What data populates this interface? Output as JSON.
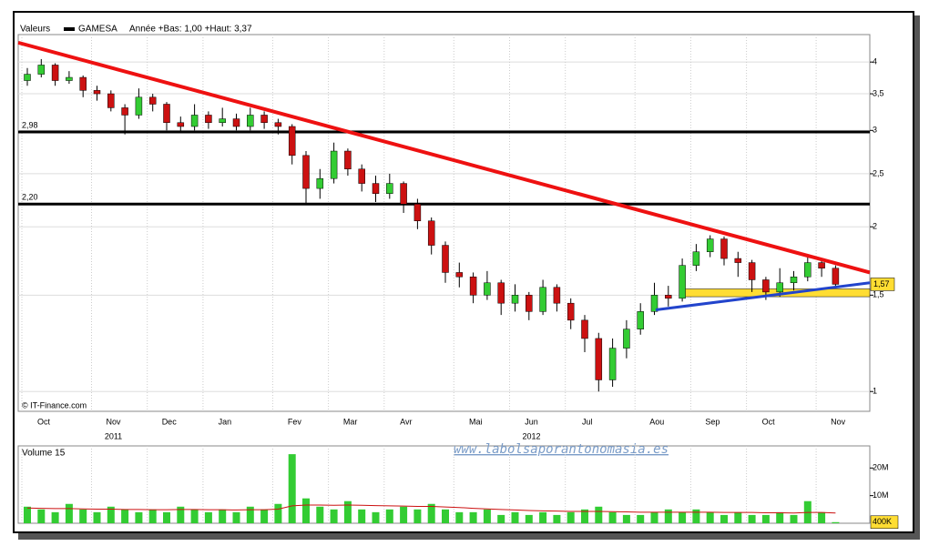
{
  "chart_data": {
    "type": "candlestick",
    "legend_label": "Valeurs",
    "series_name": "GAMESA",
    "range_text": "Année +Bas: 1,00 +Haut: 3,37",
    "categories": [
      "Oct",
      null,
      null,
      null,
      null,
      "Nov",
      null,
      null,
      null,
      "Dec",
      null,
      null,
      null,
      "Jan",
      null,
      null,
      null,
      null,
      "Fev",
      null,
      null,
      null,
      "Mar",
      null,
      null,
      null,
      "Avr",
      null,
      null,
      null,
      null,
      "Mai",
      null,
      null,
      null,
      "Jun",
      null,
      null,
      null,
      "Jul",
      null,
      null,
      null,
      null,
      "Aou",
      null,
      null,
      null,
      "Sep",
      null,
      null,
      null,
      "Oct",
      null,
      null,
      null,
      null,
      "Nov",
      null
    ],
    "years": [
      "2011",
      "2012"
    ],
    "open": [
      3.7,
      3.8,
      3.95,
      3.7,
      3.75,
      3.55,
      3.5,
      3.3,
      3.2,
      3.45,
      3.35,
      3.1,
      3.05,
      3.2,
      3.1,
      3.15,
      3.05,
      3.2,
      3.1,
      3.05,
      2.7,
      2.35,
      2.45,
      2.75,
      2.55,
      2.4,
      2.3,
      2.4,
      2.2,
      2.05,
      1.85,
      1.65,
      1.62,
      1.5,
      1.58,
      1.45,
      1.5,
      1.4,
      1.55,
      1.45,
      1.35,
      1.25,
      1.05,
      1.2,
      1.3,
      1.4,
      1.5,
      1.48,
      1.7,
      1.8,
      1.9,
      1.75,
      1.72,
      1.6,
      1.52,
      1.58,
      1.62,
      1.72,
      1.68
    ],
    "high": [
      3.9,
      4.05,
      3.98,
      3.85,
      3.78,
      3.62,
      3.55,
      3.35,
      3.58,
      3.5,
      3.38,
      3.18,
      3.35,
      3.25,
      3.3,
      3.22,
      3.3,
      3.25,
      3.15,
      3.08,
      2.75,
      2.55,
      2.85,
      2.78,
      2.6,
      2.48,
      2.5,
      2.42,
      2.25,
      2.08,
      1.88,
      1.72,
      1.65,
      1.66,
      1.6,
      1.57,
      1.52,
      1.6,
      1.57,
      1.48,
      1.38,
      1.28,
      1.25,
      1.35,
      1.45,
      1.58,
      1.56,
      1.75,
      1.86,
      1.93,
      1.92,
      1.8,
      1.74,
      1.62,
      1.68,
      1.66,
      1.76,
      1.75,
      1.7
    ],
    "low": [
      3.62,
      3.75,
      3.62,
      3.65,
      3.45,
      3.4,
      3.25,
      2.95,
      3.15,
      3.25,
      3.0,
      2.98,
      3.0,
      3.02,
      3.05,
      3.0,
      3.0,
      3.02,
      2.95,
      2.6,
      2.2,
      2.25,
      2.4,
      2.48,
      2.32,
      2.22,
      2.25,
      2.12,
      1.98,
      1.78,
      1.58,
      1.55,
      1.45,
      1.47,
      1.38,
      1.4,
      1.35,
      1.38,
      1.4,
      1.3,
      1.18,
      1.0,
      1.02,
      1.15,
      1.27,
      1.38,
      1.43,
      1.46,
      1.66,
      1.76,
      1.7,
      1.62,
      1.52,
      1.47,
      1.49,
      1.53,
      1.59,
      1.62,
      1.55
    ],
    "close": [
      3.8,
      3.95,
      3.7,
      3.75,
      3.55,
      3.5,
      3.3,
      3.2,
      3.45,
      3.35,
      3.1,
      3.05,
      3.2,
      3.1,
      3.15,
      3.05,
      3.2,
      3.1,
      3.05,
      2.7,
      2.35,
      2.45,
      2.75,
      2.55,
      2.4,
      2.3,
      2.4,
      2.2,
      2.05,
      1.85,
      1.65,
      1.62,
      1.5,
      1.58,
      1.45,
      1.5,
      1.4,
      1.55,
      1.45,
      1.35,
      1.25,
      1.05,
      1.2,
      1.3,
      1.4,
      1.5,
      1.48,
      1.7,
      1.8,
      1.9,
      1.75,
      1.72,
      1.6,
      1.52,
      1.58,
      1.62,
      1.72,
      1.68,
      1.57
    ],
    "up_color": "#33cc33",
    "down_color": "#cc1111",
    "log_scale": true,
    "grid": true,
    "ylim": [
      0.92,
      4.49
    ],
    "yticks": [
      1,
      {
        "value": 1.5,
        "label": "1,5"
      },
      2,
      {
        "value": 2.5,
        "label": "2,5"
      },
      3,
      {
        "value": 3.5,
        "label": "3,5"
      },
      4
    ],
    "levels": [
      {
        "value": 2.98,
        "label": "2,98"
      },
      {
        "value": 2.2,
        "label": "2,20"
      }
    ],
    "trendlines": [
      {
        "color": "#ee1111",
        "values": [
          4.34,
          1.65
        ]
      },
      {
        "color": "#2244cc",
        "values": [
          1.41,
          1.58
        ]
      }
    ],
    "support_band": {
      "color": "#ffdd33",
      "values": [
        1.49,
        1.54
      ]
    },
    "last_price": {
      "value": 1.57,
      "label": "1,57"
    },
    "source": "© IT-Finance.com",
    "watermark": "www.labolsaporantonomasia.es",
    "volume": {
      "title": "Volume 15",
      "color": "#33cc33",
      "ma_color": "#cc1111",
      "values": [
        6000000,
        5000000,
        4000000,
        7000000,
        5000000,
        4000000,
        6000000,
        5000000,
        4000000,
        5000000,
        4000000,
        6000000,
        5000000,
        4000000,
        5000000,
        4000000,
        6000000,
        5000000,
        7000000,
        25000000,
        9000000,
        6000000,
        5000000,
        8000000,
        5000000,
        4000000,
        5000000,
        6000000,
        5000000,
        7000000,
        5000000,
        4000000,
        4000000,
        5000000,
        3000000,
        4000000,
        3000000,
        4000000,
        3000000,
        4000000,
        5000000,
        6000000,
        4000000,
        3000000,
        3000000,
        4000000,
        5000000,
        4000000,
        5000000,
        4000000,
        3000000,
        4000000,
        3000000,
        3000000,
        4000000,
        3000000,
        8000000,
        4000000,
        400000
      ],
      "ma": [
        5500000,
        5400000,
        5300000,
        5300000,
        5200000,
        5100000,
        5100000,
        5000000,
        5000000,
        4900000,
        4900000,
        5000000,
        5000000,
        4900000,
        4900000,
        4800000,
        4900000,
        4900000,
        5100000,
        6300000,
        6600000,
        6600000,
        6500000,
        6600000,
        6500000,
        6400000,
        6300000,
        6200000,
        6100000,
        6100000,
        5900000,
        5700000,
        5400000,
        5200000,
        5000000,
        4800000,
        4600000,
        4500000,
        4400000,
        4300000,
        4300000,
        4300000,
        4200000,
        4100000,
        4000000,
        4000000,
        4000000,
        4000000,
        4000000,
        4000000,
        3900000,
        3900000,
        3900000,
        3800000,
        3800000,
        3700000,
        3900000,
        3900000,
        3700000
      ],
      "ylim": [
        0,
        28000000
      ],
      "yticks": [
        {
          "value": 10000000,
          "label": "10M"
        },
        {
          "value": 20000000,
          "label": "20M"
        }
      ],
      "last": {
        "value": 400000,
        "label": "400K"
      }
    }
  }
}
